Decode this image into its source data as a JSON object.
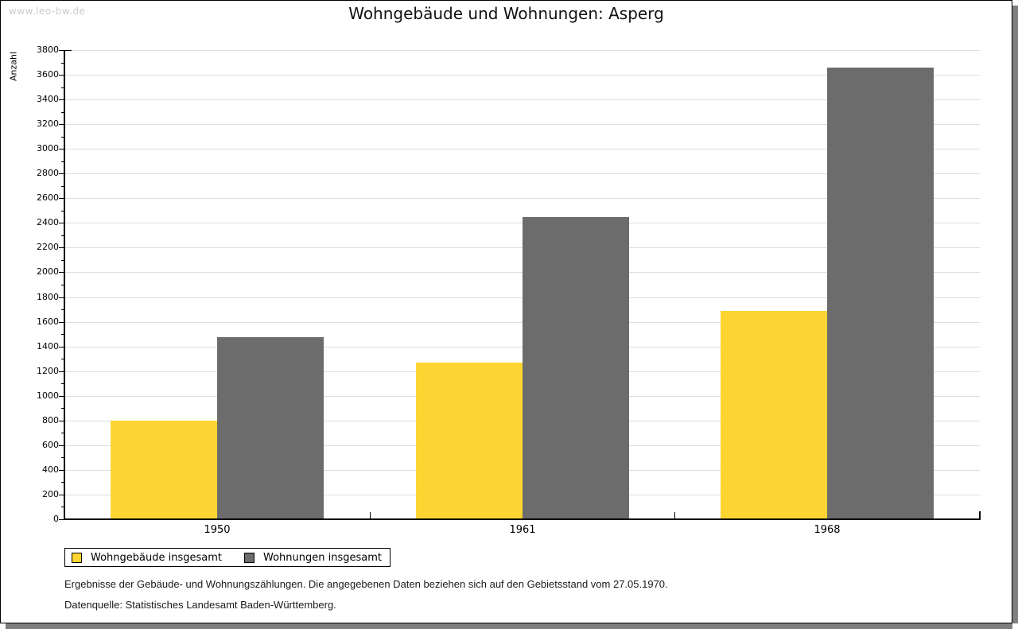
{
  "watermark": "www.leo-bw.de",
  "title": "Wohngebäude und Wohnungen: Asperg",
  "footnotes": [
    "Ergebnisse der Gebäude- und Wohnungszählungen. Die angegebenen Daten beziehen sich auf den Gebietsstand vom 27.05.1970.",
    "Datenquelle: Statistisches Landesamt Baden-Württemberg."
  ],
  "chart_data": {
    "type": "bar",
    "title": "Wohngebäude und Wohnungen: Asperg",
    "categories": [
      "1950",
      "1961",
      "1968"
    ],
    "series": [
      {
        "name": "Wohngebäude insgesamt",
        "color": "#fcd533",
        "values": [
          800,
          1270,
          1685
        ]
      },
      {
        "name": "Wohnungen insgesamt",
        "color": "#6c6c6c",
        "values": [
          1475,
          2445,
          3660
        ]
      }
    ],
    "xlabel": "",
    "ylabel": "Anzahl",
    "ylim": [
      0,
      3800
    ],
    "y_major_step": 200,
    "y_minor_step": 100,
    "grid": "horizontal major gridlines, light gray",
    "legend_position": "bottom-left",
    "colors": {
      "grid": "#dedede",
      "axis": "#000000",
      "watermark": "#cccccc",
      "frame_shadow": "#7f7f7f",
      "background": "#ffffff"
    }
  }
}
